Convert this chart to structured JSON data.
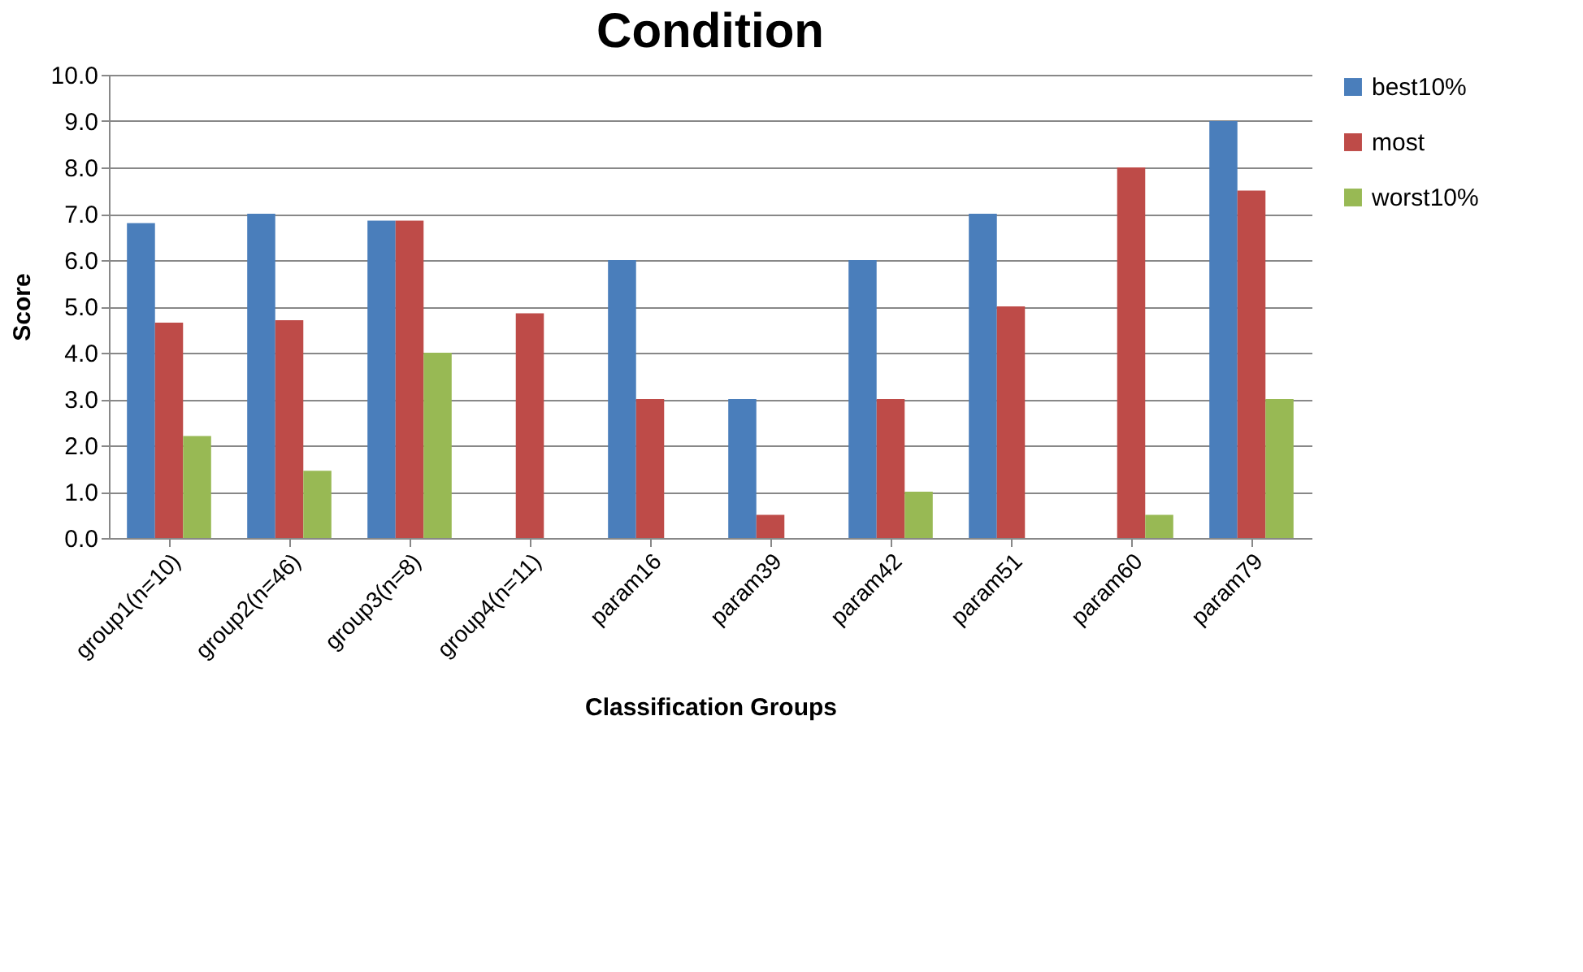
{
  "chart_data": {
    "type": "bar",
    "title": "Condition",
    "xlabel": "Classification  Groups",
    "ylabel": "Score",
    "categories": [
      "group1(n=10)",
      "group2(n=46)",
      "group3(n=8)",
      "group4(n=11)",
      "param16",
      "param39",
      "param42",
      "param51",
      "param60",
      "param79"
    ],
    "series": [
      {
        "name": "best10%",
        "color": "#4a7ebb",
        "values": [
          6.8,
          7.0,
          6.85,
          0,
          6.0,
          3.0,
          6.0,
          7.0,
          0,
          9.0
        ]
      },
      {
        "name": "most",
        "color": "#be4b48",
        "values": [
          4.65,
          4.7,
          6.85,
          4.85,
          3.0,
          0.5,
          3.0,
          5.0,
          8.0,
          7.5
        ]
      },
      {
        "name": "worst10%",
        "color": "#98b954",
        "values": [
          2.2,
          1.45,
          4.0,
          0,
          0,
          0,
          1.0,
          0,
          0.5,
          3.0
        ]
      }
    ],
    "ylim": [
      0,
      10
    ],
    "yticks": [
      {
        "value": 0,
        "label": "0.0"
      },
      {
        "value": 1,
        "label": "1.0"
      },
      {
        "value": 2,
        "label": "2.0"
      },
      {
        "value": 3,
        "label": "3.0"
      },
      {
        "value": 4,
        "label": "4.0"
      },
      {
        "value": 5,
        "label": "5.0"
      },
      {
        "value": 6,
        "label": "6.0"
      },
      {
        "value": 7,
        "label": "7.0"
      },
      {
        "value": 8,
        "label": "8.0"
      },
      {
        "value": 9,
        "label": "9.0"
      },
      {
        "value": 10,
        "label": "10.0"
      }
    ],
    "grid": "y",
    "legend": "right"
  }
}
